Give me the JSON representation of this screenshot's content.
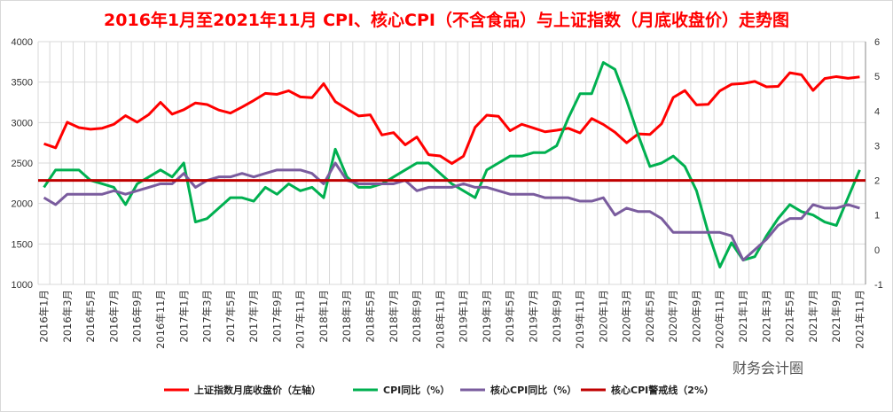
{
  "chart_data": {
    "type": "line",
    "title": "2016年1月至2021年11月  CPI、核心CPI（不含食品）与上证指数（月底收盘价）走势图",
    "x_start": "2016-01",
    "x_end": "2021-11",
    "x_tick_labels": [
      "2016年1月",
      "2016年3月",
      "2016年5月",
      "2016年7月",
      "2016年9月",
      "2016年11月",
      "2017年1月",
      "2017年3月",
      "2017年5月",
      "2017年7月",
      "2017年9月",
      "2017年11月",
      "2018年1月",
      "2018年3月",
      "2018年5月",
      "2018年7月",
      "2018年9月",
      "2018年11月",
      "2019年1月",
      "2019年3月",
      "2019年5月",
      "2019年7月",
      "2019年9月",
      "2019年11月",
      "2020年1月",
      "2020年3月",
      "2020年5月",
      "2020年7月",
      "2020年9月",
      "2020年11月",
      "2021年1月",
      "2021年3月",
      "2021年5月",
      "2021年7月",
      "2021年9月",
      "2021年11月"
    ],
    "y_left": {
      "range": [
        1000,
        4000
      ],
      "ticks": [
        1000,
        1500,
        2000,
        2500,
        3000,
        3500,
        4000
      ]
    },
    "y_right": {
      "range": [
        -1,
        6
      ],
      "ticks": [
        -1,
        0,
        1,
        2,
        3,
        4,
        5,
        6
      ]
    },
    "grid": true,
    "legend_placement": "bottom",
    "series": [
      {
        "name": "上证指数月底收盘价（左轴）",
        "axis": "left",
        "color": "#ff0000",
        "values": [
          2738,
          2688,
          3004,
          2938,
          2917,
          2930,
          2979,
          3085,
          3005,
          3100,
          3250,
          3104,
          3159,
          3242,
          3223,
          3155,
          3117,
          3192,
          3273,
          3361,
          3349,
          3393,
          3317,
          3307,
          3481,
          3259,
          3169,
          3082,
          3095,
          2847,
          2876,
          2725,
          2821,
          2603,
          2588,
          2494,
          2585,
          2941,
          3091,
          3078,
          2899,
          2979,
          2933,
          2886,
          2905,
          2929,
          2872,
          3050,
          2977,
          2880,
          2750,
          2860,
          2853,
          2985,
          3310,
          3396,
          3218,
          3225,
          3392,
          3473,
          3483,
          3509,
          3442,
          3447,
          3615,
          3591,
          3397,
          3544,
          3568,
          3547,
          3564
        ]
      },
      {
        "name": "CPI同比（%）",
        "axis": "right",
        "color": "#00b050",
        "values": [
          1.8,
          2.3,
          2.3,
          2.3,
          2.0,
          1.9,
          1.8,
          1.3,
          1.9,
          2.1,
          2.3,
          2.1,
          2.5,
          0.8,
          0.9,
          1.2,
          1.5,
          1.5,
          1.4,
          1.8,
          1.6,
          1.9,
          1.7,
          1.8,
          1.5,
          2.9,
          2.1,
          1.8,
          1.8,
          1.9,
          2.1,
          2.3,
          2.5,
          2.5,
          2.2,
          1.9,
          1.7,
          1.5,
          2.3,
          2.5,
          2.7,
          2.7,
          2.8,
          2.8,
          3.0,
          3.8,
          4.5,
          4.5,
          5.4,
          5.2,
          4.3,
          3.3,
          2.4,
          2.5,
          2.7,
          2.4,
          1.7,
          0.5,
          -0.5,
          0.2,
          -0.3,
          -0.2,
          0.4,
          0.9,
          1.3,
          1.1,
          1.0,
          0.8,
          0.7,
          1.5,
          2.3
        ]
      },
      {
        "name": "核心CPI同比（%）",
        "axis": "right",
        "color": "#7a5c9e",
        "values": [
          1.5,
          1.3,
          1.6,
          1.6,
          1.6,
          1.6,
          1.7,
          1.6,
          1.7,
          1.8,
          1.9,
          1.9,
          2.2,
          1.8,
          2.0,
          2.1,
          2.1,
          2.2,
          2.1,
          2.2,
          2.3,
          2.3,
          2.3,
          2.2,
          1.9,
          2.5,
          2.0,
          1.9,
          1.9,
          1.9,
          1.9,
          2.0,
          1.7,
          1.8,
          1.8,
          1.8,
          1.9,
          1.8,
          1.8,
          1.7,
          1.6,
          1.6,
          1.6,
          1.5,
          1.5,
          1.5,
          1.4,
          1.4,
          1.5,
          1.0,
          1.2,
          1.1,
          1.1,
          0.9,
          0.5,
          0.5,
          0.5,
          0.5,
          0.5,
          0.4,
          -0.3,
          0.0,
          0.3,
          0.7,
          0.9,
          0.9,
          1.3,
          1.2,
          1.2,
          1.3,
          1.2
        ]
      },
      {
        "name": "核心CPI警戒线（2%）",
        "axis": "right",
        "color": "#c00000",
        "constant": 2
      }
    ]
  },
  "watermark": "财务会计圈"
}
